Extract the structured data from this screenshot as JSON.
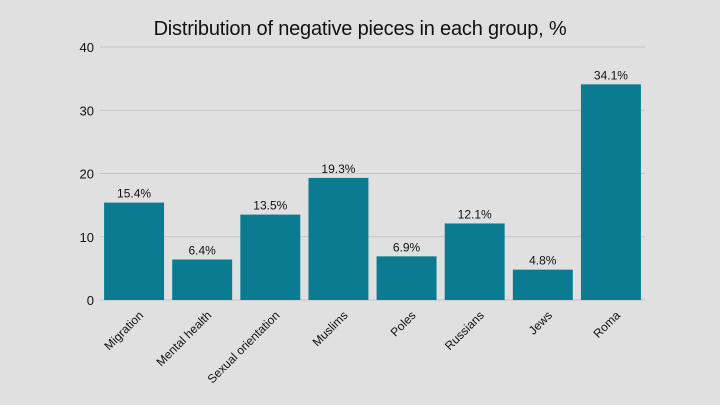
{
  "chart_data": {
    "type": "bar",
    "title": "Distribution of negative pieces in each group, %",
    "xlabel": "",
    "ylabel": "",
    "ylim": [
      0,
      40
    ],
    "yticks": [
      0,
      10,
      20,
      30,
      40
    ],
    "grid": true,
    "categories": [
      "Migration",
      "Mental health",
      "Sexual orientation",
      "Muslims",
      "Poles",
      "Russians",
      "Jews",
      "Roma"
    ],
    "values": [
      15.4,
      6.4,
      13.5,
      19.3,
      6.9,
      12.1,
      4.8,
      34.1
    ],
    "data_labels": [
      "15.4%",
      "6.4%",
      "13.5%",
      "19.3%",
      "6.9%",
      "12.1%",
      "4.8%",
      "34.1%"
    ],
    "colors": {
      "bar": "#0a7b91",
      "background": "#e0e0e0",
      "grid": "#c4c4c4",
      "text": "#111111"
    }
  }
}
